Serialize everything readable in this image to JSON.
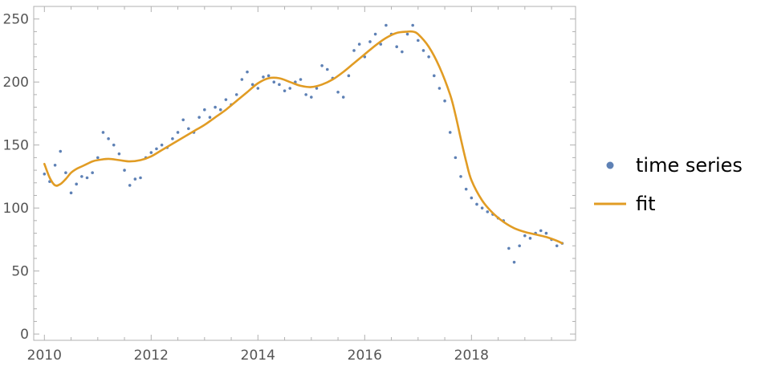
{
  "chart_data": {
    "type": "scatter",
    "title": "",
    "xlabel": "",
    "ylabel": "",
    "xlim": [
      2009.8,
      2019.95
    ],
    "ylim": [
      -5,
      260
    ],
    "grid": false,
    "legend_position": "right",
    "x_ticks": [
      2010,
      2012,
      2014,
      2016,
      2018
    ],
    "x_tick_labels": [
      "2010",
      "2012",
      "2014",
      "2016",
      "2018"
    ],
    "y_ticks": [
      0,
      50,
      100,
      150,
      200,
      250
    ],
    "y_tick_labels": [
      "0",
      "50",
      "100",
      "150",
      "200",
      "250"
    ],
    "colors": {
      "series": "#5e81b5",
      "fit": "#e19c24",
      "frame": "#b0b0b0",
      "tick_text": "#555555"
    },
    "series": [
      {
        "name": "time series",
        "kind": "points",
        "x": [
          2010.0,
          2010.1,
          2010.2,
          2010.3,
          2010.4,
          2010.5,
          2010.6,
          2010.7,
          2010.8,
          2010.9,
          2011.0,
          2011.1,
          2011.2,
          2011.3,
          2011.4,
          2011.5,
          2011.6,
          2011.7,
          2011.8,
          2011.9,
          2012.0,
          2012.1,
          2012.2,
          2012.3,
          2012.4,
          2012.5,
          2012.6,
          2012.7,
          2012.8,
          2012.9,
          2013.0,
          2013.1,
          2013.2,
          2013.3,
          2013.4,
          2013.5,
          2013.6,
          2013.7,
          2013.8,
          2013.9,
          2014.0,
          2014.1,
          2014.2,
          2014.3,
          2014.4,
          2014.5,
          2014.6,
          2014.7,
          2014.8,
          2014.9,
          2015.0,
          2015.1,
          2015.2,
          2015.3,
          2015.4,
          2015.5,
          2015.6,
          2015.7,
          2015.8,
          2015.9,
          2016.0,
          2016.1,
          2016.2,
          2016.3,
          2016.4,
          2016.5,
          2016.6,
          2016.7,
          2016.8,
          2016.9,
          2017.0,
          2017.1,
          2017.2,
          2017.3,
          2017.4,
          2017.5,
          2017.6,
          2017.7,
          2017.8,
          2017.9,
          2018.0,
          2018.1,
          2018.2,
          2018.3,
          2018.4,
          2018.5,
          2018.6,
          2018.7,
          2018.8,
          2018.9,
          2019.0,
          2019.1,
          2019.2,
          2019.3,
          2019.4,
          2019.5,
          2019.6,
          2019.7
        ],
        "y": [
          127,
          121,
          134,
          145,
          128,
          112,
          119,
          125,
          124,
          128,
          140,
          160,
          155,
          150,
          143,
          130,
          118,
          123,
          124,
          140,
          144,
          147,
          150,
          148,
          155,
          160,
          170,
          163,
          160,
          172,
          178,
          172,
          180,
          178,
          186,
          182,
          190,
          202,
          208,
          198,
          195,
          204,
          205,
          200,
          198,
          193,
          195,
          200,
          202,
          190,
          188,
          195,
          213,
          210,
          203,
          192,
          188,
          205,
          225,
          230,
          220,
          232,
          238,
          230,
          245,
          238,
          228,
          224,
          238,
          245,
          233,
          225,
          220,
          205,
          195,
          185,
          160,
          140,
          125,
          115,
          108,
          103,
          100,
          97,
          95,
          92,
          90,
          68,
          57,
          70,
          78,
          76,
          80,
          82,
          80,
          75,
          70,
          72
        ]
      },
      {
        "name": "fit",
        "kind": "line",
        "x": [
          2010.0,
          2010.1,
          2010.2,
          2010.3,
          2010.4,
          2010.5,
          2010.6,
          2010.7,
          2010.8,
          2010.9,
          2011.0,
          2011.2,
          2011.4,
          2011.6,
          2011.8,
          2012.0,
          2012.2,
          2012.4,
          2012.6,
          2012.8,
          2013.0,
          2013.2,
          2013.4,
          2013.6,
          2013.8,
          2014.0,
          2014.2,
          2014.4,
          2014.6,
          2014.8,
          2015.0,
          2015.2,
          2015.4,
          2015.6,
          2015.8,
          2016.0,
          2016.2,
          2016.4,
          2016.6,
          2016.8,
          2016.9,
          2017.0,
          2017.2,
          2017.4,
          2017.6,
          2017.7,
          2017.8,
          2017.9,
          2018.0,
          2018.2,
          2018.4,
          2018.6,
          2018.8,
          2019.0,
          2019.2,
          2019.4,
          2019.6,
          2019.7
        ],
        "y": [
          135,
          124,
          118,
          119,
          123,
          128,
          131,
          133,
          135,
          137,
          138,
          139,
          138,
          137,
          138,
          141,
          146,
          151,
          156,
          161,
          166,
          172,
          178,
          185,
          192,
          199,
          203,
          203,
          200,
          197,
          196,
          198,
          202,
          208,
          215,
          222,
          229,
          235,
          239,
          240,
          240,
          238,
          228,
          212,
          190,
          174,
          155,
          137,
          122,
          106,
          96,
          89,
          84,
          81,
          79,
          77,
          74,
          72
        ]
      }
    ]
  },
  "legend": {
    "items": [
      {
        "label": "time series"
      },
      {
        "label": "fit"
      }
    ]
  }
}
